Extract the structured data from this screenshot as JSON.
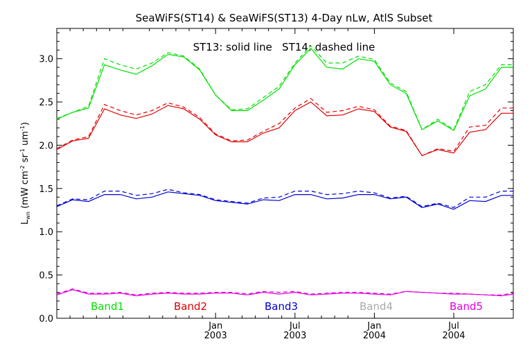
{
  "chart_data": {
    "type": "line",
    "title": "SeaWiFS(ST14) & SeaWiFS(ST13) 4-Day nLw, AtlS Subset",
    "annotation": "ST13: solid line   ST14: dashed line",
    "ylabel_main": "L",
    "ylabel_sub": "wn",
    "ylabel_units_pre": "(mW cm",
    "ylabel_units_mid": " sr",
    "ylabel_units_mid2": " um",
    "ylabel_units_post": ")",
    "ylabel_exp1": "-2",
    "ylabel_exp2": "-1",
    "ylabel_exp3": "-1",
    "ylim": [
      0.0,
      3.35
    ],
    "yticks": [
      0.0,
      0.5,
      1.0,
      1.5,
      2.0,
      2.5,
      3.0
    ],
    "ytick_labels": [
      "0.0",
      "0.5",
      "1.0",
      "1.5",
      "2.0",
      "2.5",
      "3.0"
    ],
    "xlim": [
      0,
      11.5
    ],
    "xticks": [
      {
        "pos": 4.0,
        "month": "Jan",
        "year": "2003"
      },
      {
        "pos": 6.0,
        "month": "Jul",
        "year": "2003"
      },
      {
        "pos": 8.0,
        "month": "Jan",
        "year": "2004"
      },
      {
        "pos": 10.0,
        "month": "Jul",
        "year": "2004"
      }
    ],
    "x": [
      0.0,
      0.4,
      0.8,
      1.2,
      1.6,
      2.0,
      2.4,
      2.8,
      3.2,
      3.6,
      4.0,
      4.4,
      4.8,
      5.2,
      5.6,
      6.0,
      6.4,
      6.8,
      7.2,
      7.6,
      8.0,
      8.4,
      8.8,
      9.2,
      9.6,
      10.0,
      10.4,
      10.8,
      11.2,
      11.5
    ],
    "series": [
      {
        "name": "Band1",
        "color": "#00e000",
        "solid": [
          2.3,
          2.38,
          2.43,
          2.93,
          2.87,
          2.82,
          2.92,
          3.05,
          3.02,
          2.87,
          2.58,
          2.4,
          2.4,
          2.52,
          2.65,
          2.93,
          3.12,
          2.9,
          2.88,
          3.0,
          2.97,
          2.7,
          2.6,
          2.18,
          2.28,
          2.17,
          2.57,
          2.65,
          2.9,
          2.9
        ],
        "dashed": [
          2.31,
          2.38,
          2.45,
          3.0,
          2.93,
          2.88,
          2.95,
          3.07,
          3.03,
          2.88,
          2.58,
          2.41,
          2.42,
          2.55,
          2.68,
          2.95,
          3.15,
          2.95,
          2.95,
          3.03,
          2.99,
          2.72,
          2.62,
          2.18,
          2.3,
          2.18,
          2.62,
          2.7,
          2.93,
          2.93
        ]
      },
      {
        "name": "Band2",
        "color": "#e00000",
        "solid": [
          1.95,
          2.05,
          2.08,
          2.42,
          2.35,
          2.31,
          2.36,
          2.46,
          2.42,
          2.3,
          2.12,
          2.04,
          2.04,
          2.14,
          2.2,
          2.4,
          2.5,
          2.34,
          2.35,
          2.42,
          2.39,
          2.21,
          2.16,
          1.88,
          1.95,
          1.91,
          2.15,
          2.18,
          2.37,
          2.37
        ],
        "dashed": [
          1.96,
          2.06,
          2.1,
          2.47,
          2.4,
          2.35,
          2.4,
          2.49,
          2.44,
          2.32,
          2.13,
          2.05,
          2.06,
          2.16,
          2.25,
          2.43,
          2.54,
          2.38,
          2.4,
          2.45,
          2.41,
          2.22,
          2.17,
          1.88,
          1.96,
          1.93,
          2.21,
          2.23,
          2.43,
          2.43
        ]
      },
      {
        "name": "Band3",
        "color": "#0000d0",
        "solid": [
          1.29,
          1.37,
          1.35,
          1.43,
          1.43,
          1.38,
          1.4,
          1.46,
          1.44,
          1.42,
          1.36,
          1.34,
          1.32,
          1.37,
          1.36,
          1.43,
          1.43,
          1.38,
          1.39,
          1.43,
          1.43,
          1.38,
          1.4,
          1.28,
          1.32,
          1.26,
          1.36,
          1.35,
          1.42,
          1.42
        ],
        "dashed": [
          1.3,
          1.38,
          1.37,
          1.47,
          1.47,
          1.42,
          1.44,
          1.49,
          1.45,
          1.43,
          1.37,
          1.35,
          1.33,
          1.39,
          1.4,
          1.47,
          1.47,
          1.43,
          1.44,
          1.47,
          1.45,
          1.39,
          1.41,
          1.29,
          1.33,
          1.28,
          1.4,
          1.4,
          1.47,
          1.47
        ]
      },
      {
        "name": "Band4",
        "color": "#a8a8a8",
        "solid": [],
        "dashed": []
      },
      {
        "name": "Band5",
        "color": "#e000e0",
        "solid": [
          0.27,
          0.33,
          0.28,
          0.28,
          0.29,
          0.26,
          0.28,
          0.29,
          0.28,
          0.28,
          0.29,
          0.29,
          0.27,
          0.3,
          0.28,
          0.3,
          0.27,
          0.28,
          0.29,
          0.29,
          0.28,
          0.27,
          0.31,
          0.3,
          0.29,
          0.28,
          0.28,
          0.27,
          0.26,
          0.28
        ],
        "dashed": [
          0.28,
          0.34,
          0.29,
          0.29,
          0.3,
          0.27,
          0.29,
          0.3,
          0.29,
          0.29,
          0.3,
          0.3,
          0.28,
          0.31,
          0.3,
          0.31,
          0.28,
          0.29,
          0.3,
          0.3,
          0.29,
          0.28,
          0.31,
          0.3,
          0.29,
          0.29,
          0.28,
          0.27,
          0.27,
          0.29
        ]
      }
    ],
    "grid": false,
    "legend_placement": "bottom-inside"
  }
}
